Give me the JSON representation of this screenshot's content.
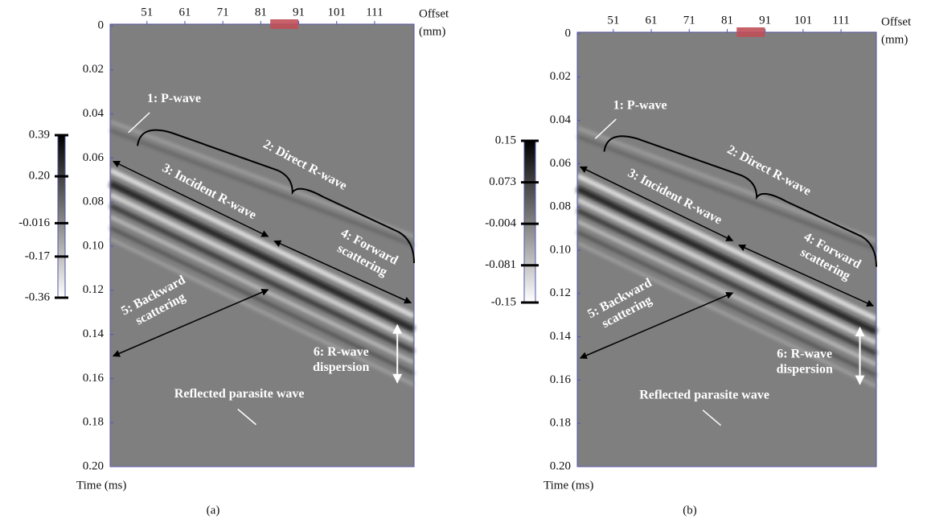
{
  "figure": {
    "panels": [
      {
        "label": "(a)",
        "x_label": [
          "Offset",
          "(mm)"
        ],
        "y_label": "Time (ms)",
        "xlim": [
          41.3,
          121.4
        ],
        "xticks": [
          51,
          61,
          71,
          81,
          91,
          101,
          111
        ],
        "ylim": [
          0,
          0.2
        ],
        "yticks": [
          0,
          0.02,
          0.04,
          0.06,
          0.08,
          {
            "value": 0.1,
            "label": "0.10"
          },
          0.12,
          0.14,
          0.16,
          0.18,
          {
            "value": 0.2,
            "label": "0.20"
          }
        ],
        "colorbar": {
          "range": [
            -0.36,
            0.39
          ],
          "ticks": [
            0.39,
            {
              "value": 0.2,
              "label": "0.20"
            },
            -0.016,
            -0.17,
            -0.36
          ]
        },
        "annotations": [
          [
            "1: P-wave"
          ],
          [
            "2: Direct R-wave"
          ],
          [
            "3: Incident R-wave"
          ],
          [
            "4: Forward",
            "scattering"
          ],
          [
            "5: Backward",
            "scattering"
          ],
          [
            "6: R-wave",
            "dispersion"
          ],
          [
            "Reflected parasite wave"
          ]
        ]
      },
      {
        "label": "(b)",
        "x_label": [
          "Offset",
          "(mm)"
        ],
        "y_label": "Time (ms)",
        "xlim": [
          41.5,
          120.3
        ],
        "xticks": [
          51,
          61,
          71,
          81,
          91,
          101,
          111
        ],
        "ylim": [
          0,
          0.2
        ],
        "yticks": [
          0,
          0.02,
          0.04,
          0.06,
          0.08,
          {
            "value": 0.1,
            "label": "0.10"
          },
          0.12,
          0.14,
          0.16,
          0.18,
          {
            "value": 0.2,
            "label": "0.20"
          }
        ],
        "colorbar": {
          "range": [
            -0.15,
            0.15
          ],
          "ticks": [
            0.15,
            0.073,
            -0.004,
            -0.081,
            -0.15
          ]
        },
        "annotations": [
          [
            "1: P-wave"
          ],
          [
            "2: Direct R-wave"
          ],
          [
            "3: Incident R-wave"
          ],
          [
            "4: Forward",
            "scattering"
          ],
          [
            "5: Backward",
            "scattering"
          ],
          [
            "6: R-wave",
            "dispersion"
          ],
          [
            "Reflected parasite wave"
          ]
        ]
      }
    ]
  }
}
